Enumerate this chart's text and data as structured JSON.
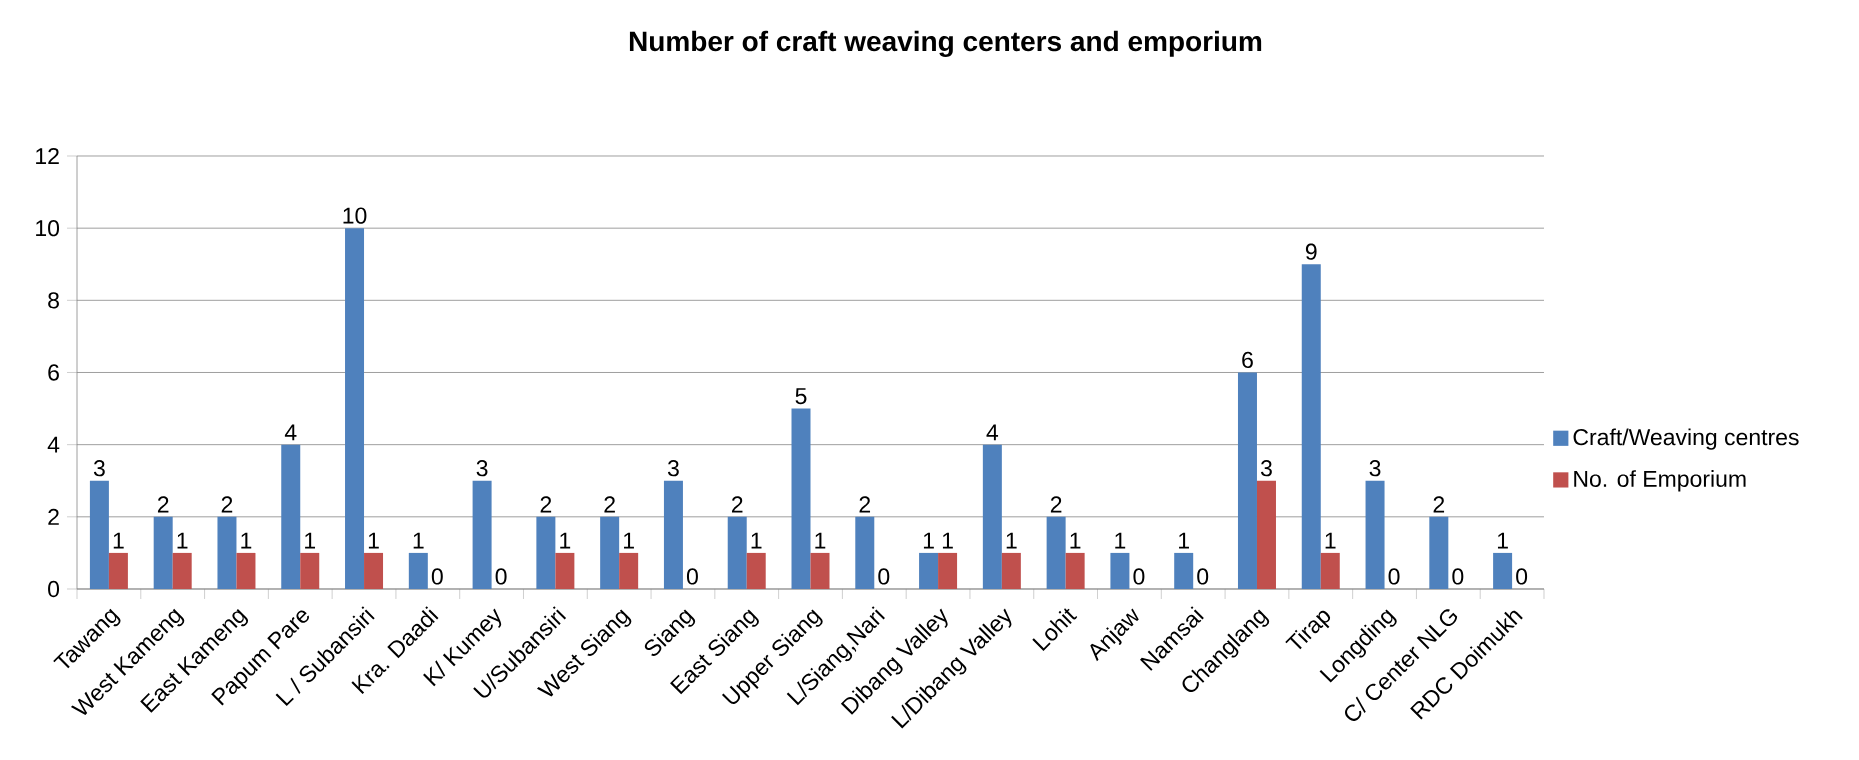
{
  "chart_data": {
    "type": "bar",
    "title": "Number of craft weaving centers and emporium",
    "categories": [
      "Tawang",
      "West Kameng",
      "East Kameng",
      "Papum Pare",
      "L / Subansiri",
      "Kra. Daadi",
      "K/ Kumey",
      "U/Subansiri",
      "West Siang",
      "Siang",
      "East Siang",
      "Upper Siang",
      "L/Siang,Nari",
      "Dibang Valley",
      "L/Dibang Valley",
      "Lohit",
      "Anjaw",
      "Namsai",
      "Changlang",
      "Tirap",
      "Longding",
      "C/ Center NLG",
      "RDC Doimukh"
    ],
    "series": [
      {
        "name": "Craft/Weaving centres",
        "color": "#4f81bd",
        "values": [
          3,
          2,
          2,
          4,
          10,
          1,
          3,
          2,
          2,
          3,
          2,
          5,
          2,
          1,
          4,
          2,
          1,
          1,
          6,
          9,
          3,
          2,
          1
        ]
      },
      {
        "name": "No. of Emporium",
        "color": "#c0504d",
        "values": [
          1,
          1,
          1,
          1,
          1,
          0,
          0,
          1,
          1,
          0,
          1,
          1,
          0,
          1,
          1,
          1,
          0,
          0,
          3,
          1,
          0,
          0,
          0
        ]
      }
    ],
    "ylim": [
      0,
      12
    ],
    "yticks": [
      0,
      2,
      4,
      6,
      8,
      10,
      12
    ],
    "grid": "y",
    "legend": "right",
    "data_labels": true
  }
}
